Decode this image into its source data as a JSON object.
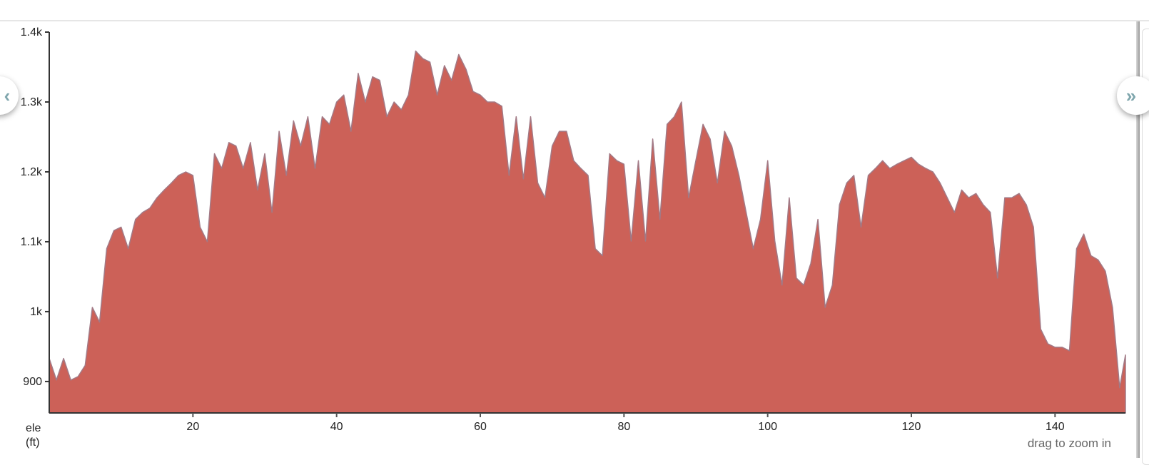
{
  "chart_data": {
    "type": "area",
    "xlabel": "",
    "ylabel": "ele (ft)",
    "ylabel_lines": [
      "ele",
      "(ft)"
    ],
    "xlim": [
      0,
      149.8
    ],
    "ylim": [
      855,
      1400
    ],
    "x_ticks": [
      20,
      40,
      60,
      80,
      100,
      120,
      140
    ],
    "x_tick_labels": [
      "20",
      "40",
      "60",
      "80",
      "100",
      "120",
      "140"
    ],
    "y_ticks": [
      900,
      1000,
      1100,
      1200,
      1300,
      1400
    ],
    "y_tick_labels": [
      "900",
      "1k",
      "1.1k",
      "1.2k",
      "1.3k",
      "1.4k"
    ],
    "grid": false,
    "fill_color": "#cc6158",
    "line_color": "#a27a86",
    "x": [
      0,
      1,
      2,
      3,
      4,
      5,
      6,
      7,
      8,
      9,
      10,
      11,
      12,
      13,
      14,
      15,
      16,
      17,
      18,
      19,
      20,
      21,
      22,
      23,
      24,
      25,
      26,
      27,
      28,
      29,
      30,
      31,
      32,
      33,
      34,
      35,
      36,
      37,
      38,
      39,
      40,
      41,
      42,
      43,
      44,
      45,
      46,
      47,
      48,
      49,
      50,
      51,
      52,
      53,
      54,
      55,
      56,
      57,
      58,
      59,
      60,
      61,
      62,
      63,
      64,
      65,
      66,
      67,
      68,
      69,
      70,
      71,
      72,
      73,
      74,
      75,
      76,
      77,
      78,
      79,
      80,
      81,
      82,
      83,
      84,
      85,
      86,
      87,
      88,
      89,
      90,
      91,
      92,
      93,
      94,
      95,
      96,
      97,
      98,
      99,
      100,
      101,
      102,
      103,
      104,
      105,
      106,
      107,
      108,
      109,
      110,
      111,
      112,
      113,
      114,
      115,
      116,
      117,
      118,
      119,
      120,
      121,
      122,
      123,
      124,
      125,
      126,
      127,
      128,
      129,
      130,
      131,
      132,
      133,
      134,
      135,
      136,
      137,
      138,
      139,
      140,
      141,
      142,
      143,
      144,
      145,
      146,
      147,
      148,
      149,
      149.8
    ],
    "values": [
      933,
      902,
      933,
      902,
      907,
      923,
      1006,
      985,
      1090,
      1116,
      1121,
      1090,
      1132,
      1142,
      1148,
      1163,
      1174,
      1184,
      1195,
      1200,
      1195,
      1121,
      1100,
      1226,
      1205,
      1242,
      1237,
      1205,
      1242,
      1174,
      1226,
      1142,
      1258,
      1195,
      1273,
      1237,
      1279,
      1205,
      1279,
      1268,
      1300,
      1310,
      1258,
      1341,
      1300,
      1336,
      1331,
      1279,
      1300,
      1289,
      1310,
      1373,
      1362,
      1357,
      1310,
      1352,
      1331,
      1368,
      1347,
      1315,
      1310,
      1300,
      1300,
      1294,
      1195,
      1279,
      1190,
      1279,
      1184,
      1163,
      1237,
      1258,
      1258,
      1216,
      1205,
      1195,
      1090,
      1080,
      1226,
      1216,
      1211,
      1101,
      1216,
      1101,
      1247,
      1132,
      1268,
      1279,
      1300,
      1163,
      1216,
      1268,
      1247,
      1184,
      1258,
      1237,
      1195,
      1142,
      1090,
      1132,
      1216,
      1101,
      1038,
      1163,
      1048,
      1038,
      1069,
      1132,
      1006,
      1038,
      1153,
      1184,
      1195,
      1121,
      1195,
      1205,
      1216,
      1205,
      1211,
      1216,
      1221,
      1211,
      1205,
      1200,
      1184,
      1163,
      1142,
      1174,
      1163,
      1169,
      1153,
      1142,
      1048,
      1163,
      1163,
      1169,
      1153,
      1121,
      975,
      954,
      949,
      949,
      944,
      1090,
      1111,
      1080,
      1074,
      1058,
      1006,
      891,
      938
    ]
  },
  "controls": {
    "prev_icon": "chevron-left-icon",
    "prev_glyph": "‹",
    "next_icon": "double-chevron-right-icon",
    "next_glyph": "»"
  },
  "hint": "drag to zoom in"
}
